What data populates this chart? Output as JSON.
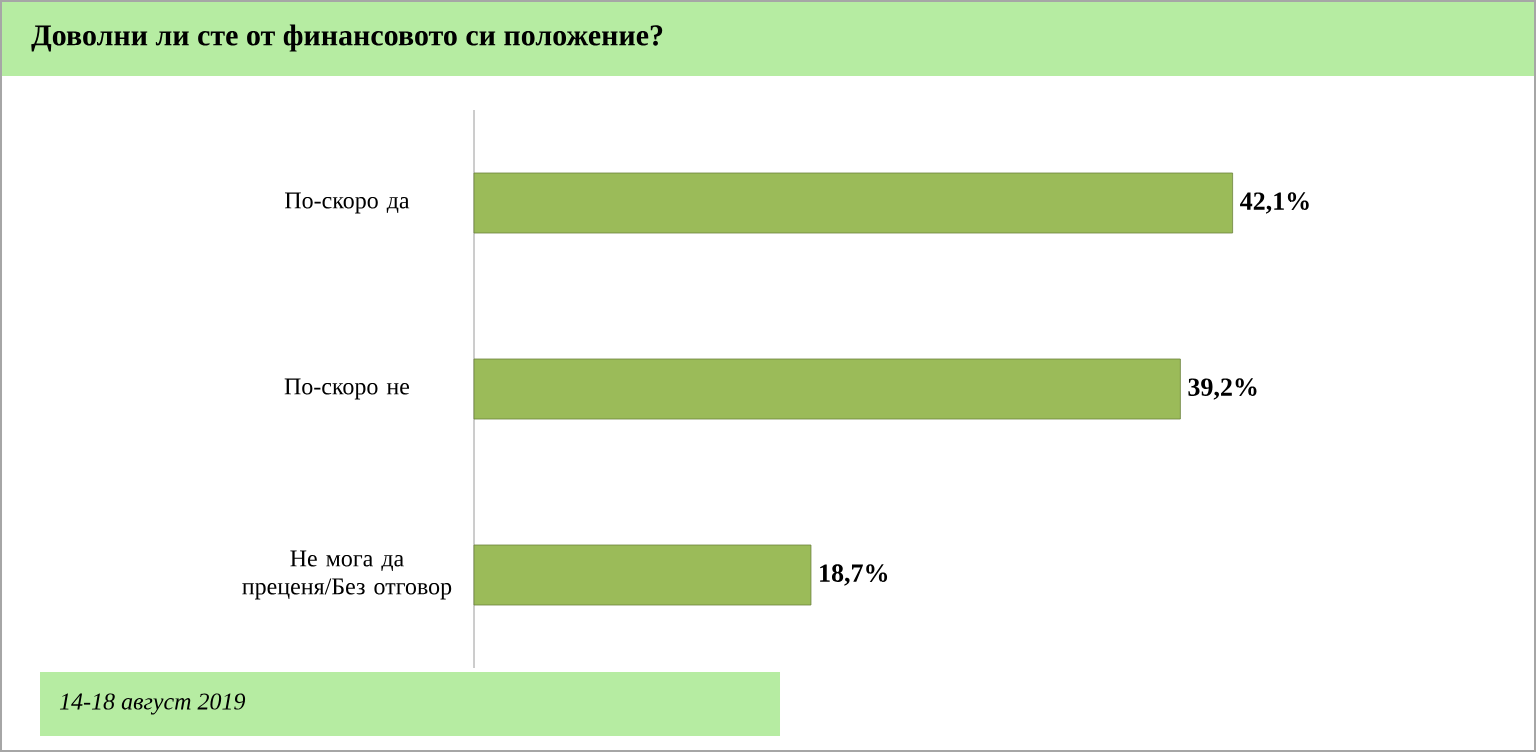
{
  "chart_data": {
    "type": "bar",
    "orientation": "horizontal",
    "title": "Доволни ли сте от финансовото си положение?",
    "categories": [
      "По-скоро да",
      "По-скоро не",
      "Не мога да преценя/Без отговор"
    ],
    "values": [
      42.1,
      39.2,
      18.7
    ],
    "value_labels": [
      "42,1%",
      "39,2%",
      "18,7%"
    ],
    "color": "#9bbb59",
    "annotations": [
      "14-18  август 2019"
    ]
  }
}
